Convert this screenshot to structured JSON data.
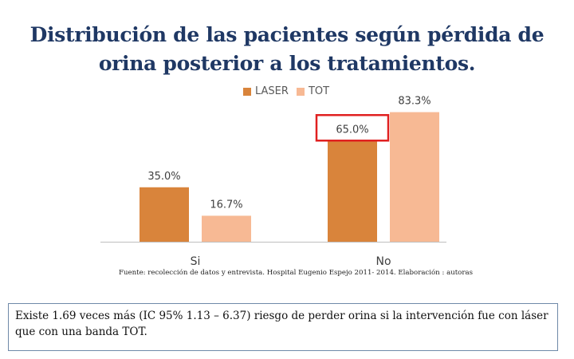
{
  "slide": {
    "title_line1": "Distribución de las pacientes según pérdida de",
    "title_line2": "orina posterior a los tratamientos.",
    "source": "Fuente: recolección de datos y entrevista. Hospital Eugenio Espejo 2011- 2014. Elaboración : autoras",
    "note": "Existe 1.69 veces más (IC 95% 1.13 – 6.37) riesgo de perder orina si la intervención fue con láser que con una banda TOT."
  },
  "chart_data": {
    "type": "bar",
    "categories": [
      "Si",
      "No"
    ],
    "series": [
      {
        "name": "LASER",
        "values": [
          35.0,
          65.0
        ],
        "labels": [
          "35.0%",
          "65.0%"
        ],
        "color": "#d9843b"
      },
      {
        "name": "TOT",
        "values": [
          16.7,
          83.3
        ],
        "labels": [
          "16.7%",
          "83.3%"
        ],
        "color": "#f7b994"
      }
    ],
    "ylim": [
      0,
      100
    ],
    "grid": false,
    "legend_position": "top",
    "highlight": {
      "category": "No",
      "series": "LASER",
      "color": "#e02020"
    }
  }
}
